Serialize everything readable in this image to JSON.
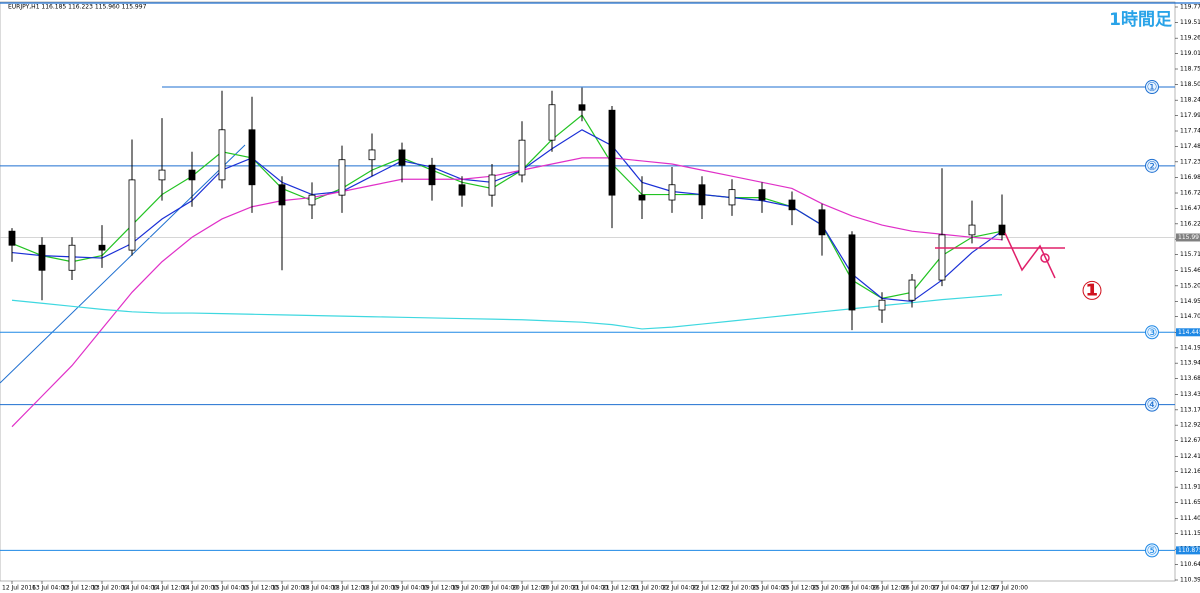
{
  "chart_data": {
    "type": "candlestick",
    "symbol_info": "EURJPY,H1  116.185 116.223 115.960 115.997",
    "title": "1時間足",
    "annotation": "①",
    "categories": [
      "12 Jul 2016",
      "13 Jul 04:00",
      "13 Jul 12:00",
      "13 Jul 20:00",
      "14 Jul 04:00",
      "14 Jul 12:00",
      "14 Jul 20:00",
      "15 Jul 04:00",
      "15 Jul 12:00",
      "15 Jul 20:00",
      "18 Jul 04:00",
      "18 Jul 12:00",
      "18 Jul 20:00",
      "19 Jul 04:00",
      "19 Jul 12:00",
      "19 Jul 20:00",
      "20 Jul 04:00",
      "20 Jul 12:00",
      "20 Jul 20:00",
      "21 Jul 04:00",
      "21 Jul 12:00",
      "21 Jul 20:00",
      "22 Jul 04:00",
      "22 Jul 12:00",
      "22 Jul 20:00",
      "25 Jul 04:00",
      "25 Jul 12:00",
      "25 Jul 20:00",
      "26 Jul 04:00",
      "26 Jul 12:00",
      "26 Jul 20:00",
      "27 Jul 04:00",
      "27 Jul 12:00",
      "27 Jul 20:00"
    ],
    "open": [
      116.1,
      115.87,
      115.46,
      115.87,
      115.79,
      116.94,
      117.1,
      116.94,
      117.76,
      116.86,
      116.53,
      116.69,
      117.27,
      117.43,
      117.18,
      116.86,
      116.69,
      117.02,
      117.59,
      118.17,
      118.08,
      116.69,
      116.61,
      116.86,
      116.53,
      116.78,
      116.61,
      116.45,
      116.04,
      114.81,
      114.97,
      115.3,
      116.04,
      116.2
    ],
    "high": [
      116.15,
      116.0,
      116.0,
      116.2,
      117.6,
      117.95,
      117.4,
      118.4,
      118.3,
      117.0,
      116.9,
      117.5,
      117.7,
      117.55,
      117.3,
      117.0,
      117.2,
      117.9,
      118.4,
      118.45,
      118.15,
      117.0,
      117.15,
      117.0,
      116.95,
      116.9,
      116.75,
      116.55,
      116.1,
      115.1,
      115.4,
      117.13,
      116.6,
      116.7
    ],
    "low": [
      115.6,
      114.97,
      115.3,
      115.5,
      115.7,
      116.6,
      116.5,
      116.8,
      116.4,
      115.46,
      116.3,
      116.4,
      117.0,
      116.9,
      116.6,
      116.5,
      116.5,
      116.9,
      117.4,
      117.9,
      116.15,
      116.3,
      116.4,
      116.3,
      116.35,
      116.4,
      116.2,
      115.7,
      114.48,
      114.6,
      114.85,
      115.2,
      115.9,
      115.95
    ],
    "close": [
      115.87,
      115.46,
      115.87,
      115.79,
      116.94,
      117.1,
      116.94,
      117.76,
      116.86,
      116.53,
      116.69,
      117.27,
      117.43,
      117.18,
      116.86,
      116.69,
      117.02,
      117.59,
      118.17,
      118.08,
      116.69,
      116.61,
      116.86,
      116.53,
      116.78,
      116.61,
      116.45,
      116.04,
      114.81,
      114.97,
      115.3,
      116.04,
      116.2,
      116.04
    ],
    "up_color": "#ffffff",
    "down_color": "#000000",
    "ma_lines": [
      {
        "color": "#22c322",
        "values": [
          115.9,
          115.7,
          115.6,
          115.7,
          116.2,
          116.7,
          117.0,
          117.4,
          117.3,
          116.8,
          116.6,
          116.8,
          117.1,
          117.3,
          117.1,
          116.9,
          116.8,
          117.1,
          117.6,
          118.0,
          117.2,
          116.7,
          116.7,
          116.7,
          116.65,
          116.65,
          116.5,
          116.2,
          115.3,
          115.0,
          115.1,
          115.7,
          116.0,
          116.1
        ]
      },
      {
        "color": "#1a2fd6",
        "values": [
          115.75,
          115.7,
          115.68,
          115.66,
          115.9,
          116.3,
          116.6,
          117.1,
          117.3,
          116.9,
          116.7,
          116.75,
          117.0,
          117.25,
          117.15,
          116.95,
          116.9,
          117.1,
          117.45,
          117.76,
          117.5,
          116.9,
          116.75,
          116.7,
          116.65,
          116.6,
          116.5,
          116.2,
          115.4,
          115.0,
          114.95,
          115.3,
          115.75,
          116.1
        ]
      },
      {
        "color": "#e030c8",
        "values": [
          112.9,
          113.4,
          113.9,
          114.5,
          115.1,
          115.6,
          116.0,
          116.3,
          116.5,
          116.6,
          116.65,
          116.75,
          116.85,
          116.95,
          116.95,
          116.95,
          117.0,
          117.1,
          117.2,
          117.3,
          117.3,
          117.25,
          117.2,
          117.1,
          117.0,
          116.9,
          116.8,
          116.55,
          116.35,
          116.2,
          116.1,
          116.05,
          116.0,
          115.96
        ]
      },
      {
        "color": "#3fd8e0",
        "values": [
          114.97,
          114.92,
          114.87,
          114.82,
          114.78,
          114.76,
          114.76,
          114.75,
          114.74,
          114.73,
          114.72,
          114.71,
          114.7,
          114.69,
          114.68,
          114.67,
          114.66,
          114.65,
          114.63,
          114.61,
          114.57,
          114.5,
          114.53,
          114.58,
          114.63,
          114.68,
          114.73,
          114.78,
          114.83,
          114.88,
          114.93,
          114.98,
          115.02,
          115.06
        ]
      }
    ],
    "levels": [
      {
        "label": "①",
        "value": 118.46,
        "color": "#1e6fd0",
        "from_index": 5
      },
      {
        "label": "②",
        "value": 117.17,
        "color": "#1e6fd0"
      },
      {
        "label": "③",
        "value": 114.445,
        "color": "#1e88e5",
        "show_price": true
      },
      {
        "label": "④",
        "value": 113.26,
        "color": "#1e6fd0"
      },
      {
        "label": "⑤",
        "value": 110.875,
        "color": "#1e88e5",
        "show_price": true
      }
    ],
    "current_price": 115.997,
    "ylim": [
      110.39,
      119.77
    ],
    "yticks": [
      {
        "value": 119.77,
        "label": "119.770"
      },
      119.515,
      {
        "value": 119.26,
        "label": "119.260"
      },
      {
        "value": 119.01,
        "label": "119.010"
      },
      118.755,
      {
        "value": 118.5,
        "label": "118.500"
      },
      118.245,
      117.995,
      {
        "value": 117.74,
        "label": "117.740"
      },
      117.485,
      117.235,
      {
        "value": 116.98,
        "label": "116.980"
      },
      116.725,
      {
        "value": 116.47,
        "label": "116.470"
      },
      {
        "value": 116.22,
        "label": "116.220"
      },
      {
        "value": 115.97,
        "label": "115.970"
      },
      115.715,
      {
        "value": 115.46,
        "label": "115.460"
      },
      115.205,
      {
        "value": 114.95,
        "label": "114.950"
      },
      {
        "value": 114.7,
        "label": "114.700"
      },
      114.445,
      {
        "value": 114.19,
        "label": "114.190"
      },
      {
        "value": 113.94,
        "label": "113.940"
      },
      113.685,
      {
        "value": 113.43,
        "label": "113.430"
      },
      113.175,
      112.925,
      {
        "value": 112.67,
        "label": "112.670"
      },
      112.415,
      112.165,
      {
        "value": 111.91,
        "label": "111.910"
      },
      111.655,
      {
        "value": 111.4,
        "label": "111.400"
      },
      {
        "value": 111.15,
        "label": "111.150"
      },
      110.895,
      {
        "value": 110.64,
        "label": "110.640"
      },
      {
        "value": 110.39,
        "label": "110.390"
      }
    ]
  }
}
